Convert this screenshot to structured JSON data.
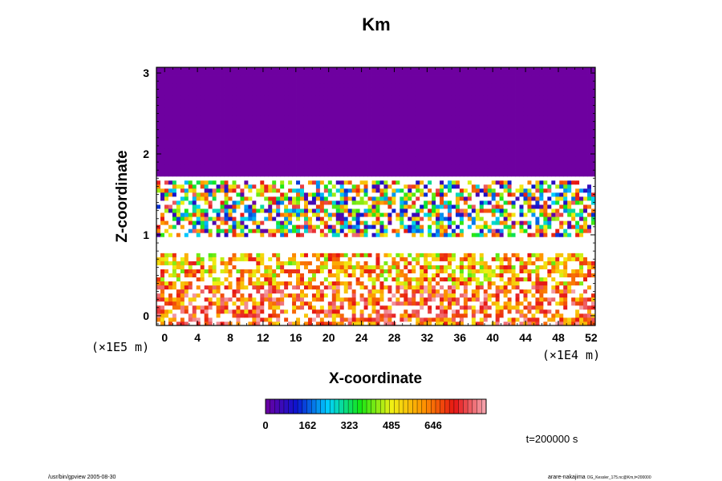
{
  "chart_data": {
    "type": "heatmap",
    "title": "Km",
    "xlabel": "X-coordinate",
    "ylabel": "Z-coordinate",
    "x_unit": "(×1E4 m)",
    "y_unit": "(×1E5 m)",
    "xlim": [
      -1,
      52.5
    ],
    "ylim": [
      -0.12,
      3.07
    ],
    "x_ticks": [
      "0",
      "4",
      "8",
      "12",
      "16",
      "20",
      "24",
      "28",
      "32",
      "36",
      "40",
      "44",
      "48",
      "52"
    ],
    "y_ticks": [
      "0",
      "1",
      "2",
      "3"
    ],
    "colorbar": {
      "min": 0,
      "max": 850,
      "tick_labels": [
        "0",
        "162",
        "323",
        "485",
        "646"
      ],
      "tick_values": [
        0,
        162,
        323,
        485,
        646
      ]
    },
    "field_regions": [
      {
        "z_range": [
          1.72,
          3.07
        ],
        "value": 0,
        "description": "uniform minimum Km (purple)"
      },
      {
        "z_range": [
          1.0,
          1.65
        ],
        "value_range": [
          0,
          800
        ],
        "description": "turbulent layer, mixed colors"
      },
      {
        "z_range": [
          0.85,
          1.0
        ],
        "value": 850,
        "description": "near-white band"
      },
      {
        "z_range": [
          0.4,
          0.8
        ],
        "value_range": [
          400,
          750
        ],
        "description": "green/yellow/red band"
      },
      {
        "z_range": [
          -0.12,
          0.4
        ],
        "value_range": [
          500,
          850
        ],
        "description": "red / white patches"
      }
    ],
    "annotations": {
      "time_label": "t=200000 s"
    },
    "grid": false,
    "legend": "colorbar-bottom"
  },
  "footer": {
    "left": "/usr/bin/gpview 2005-08-30",
    "right": "arare-nakajima",
    "right_small": "OG_Kessler_175.nc@Km,t=200000"
  },
  "colors": {
    "low": "#6e00a0",
    "blue": "#0a14d0",
    "cyan": "#00d2ff",
    "green": "#14e614",
    "yellow": "#f0f014",
    "orange": "#ff9600",
    "red": "#e61414",
    "pink": "#f5aab4",
    "white": "#ffffff"
  }
}
